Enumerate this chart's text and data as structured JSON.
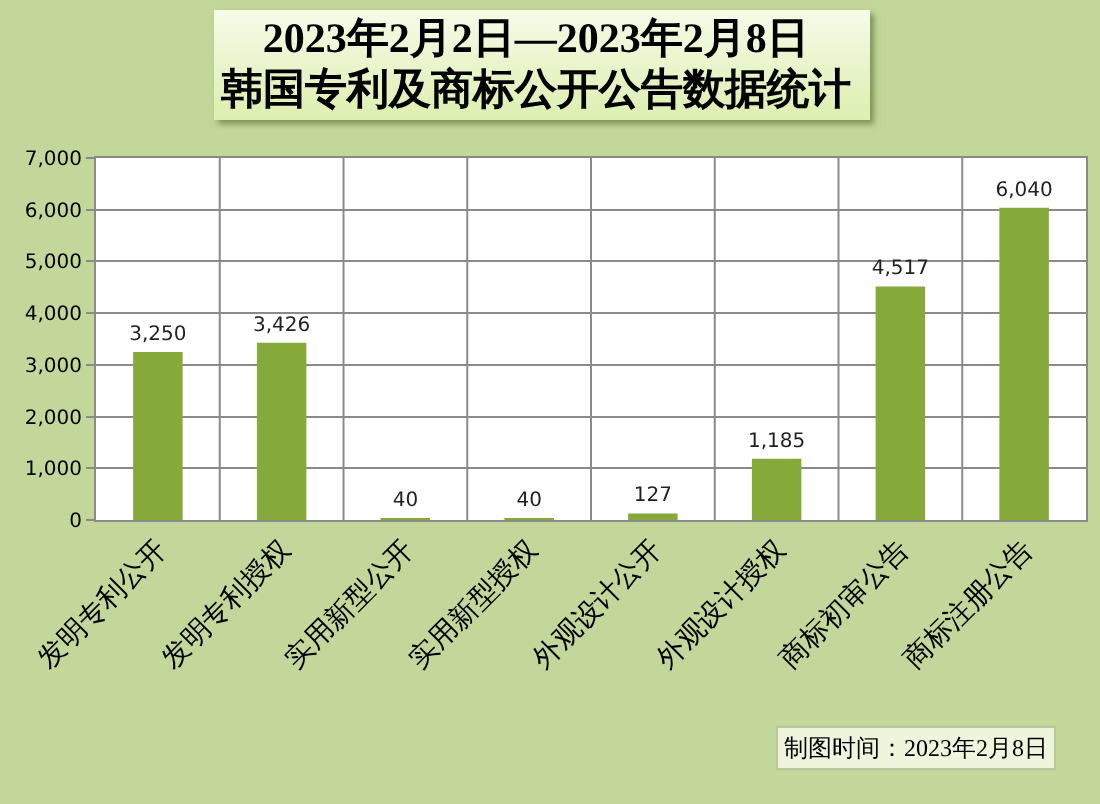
{
  "chart_data": {
    "type": "bar",
    "title": "2023年2月2日—2023年2月8日",
    "subtitle": "韩国专利及商标公开公告数据统计",
    "categories": [
      "发明专利公开",
      "发明专利授权",
      "实用新型公开",
      "实用新型授权",
      "外观设计公开",
      "外观设计授权",
      "商标初审公告",
      "商标注册公告"
    ],
    "values": [
      3250,
      3426,
      40,
      40,
      127,
      1185,
      4517,
      6040
    ],
    "value_labels": [
      "3,250",
      "3,426",
      "40",
      "40",
      "127",
      "1,185",
      "4,517",
      "6,040"
    ],
    "color": "#86aa3a",
    "ylim": [
      0,
      7000
    ],
    "yticks": [
      0,
      {
        "value": 1000,
        "label": "1,000"
      },
      {
        "value": 2000,
        "label": "2,000"
      },
      {
        "value": 3000,
        "label": "3,000"
      },
      {
        "value": 4000,
        "label": "4,000"
      },
      {
        "value": 5000,
        "label": "5,000"
      },
      {
        "value": 6000,
        "label": "6,000"
      },
      {
        "value": 7000,
        "label": "7,000"
      }
    ],
    "grid": true,
    "annotations": [
      "制图时间：2023年2月8日"
    ]
  }
}
